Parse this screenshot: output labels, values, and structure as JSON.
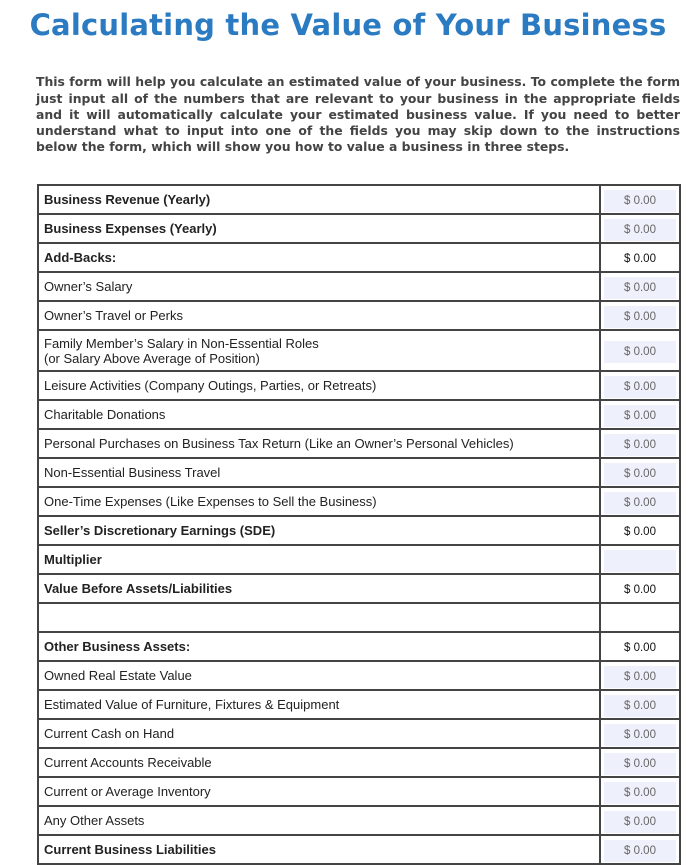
{
  "title": "Calculating the Value of Your Business",
  "intro": "This form will help you calculate an estimated value of your business. To complete the form just input all of the numbers that are relevant to your business in the appropriate fields and it will automatically calculate your estimated business value. If you need to better understand what to input into one of the fields you may skip down to the instructions below the form, which will show you how to value a business in three steps.",
  "rows": [
    {
      "label": "Business Revenue (Yearly)",
      "value": "$ 0.00",
      "bold": true,
      "type": "input"
    },
    {
      "label": "Business Expenses (Yearly)",
      "value": "$ 0.00",
      "bold": true,
      "type": "input"
    },
    {
      "label": "Add-Backs:",
      "value": "$ 0.00",
      "bold": true,
      "type": "calc"
    },
    {
      "label": "Owner’s Salary",
      "value": "$ 0.00",
      "type": "input"
    },
    {
      "label": "Owner’s Travel or Perks",
      "value": "$ 0.00",
      "type": "input"
    },
    {
      "label": "Family Member’s Salary in Non-Essential Roles\n(or Salary Above Average of Position)",
      "value": "$ 0.00",
      "type": "input",
      "two": true
    },
    {
      "label": "Leisure Activities (Company Outings, Parties, or Retreats)",
      "value": "$ 0.00",
      "type": "input"
    },
    {
      "label": "Charitable Donations",
      "value": "$ 0.00",
      "type": "input"
    },
    {
      "label": "Personal Purchases on Business Tax Return (Like an Owner’s Personal Vehicles)",
      "value": "$ 0.00",
      "type": "input"
    },
    {
      "label": "Non-Essential Business Travel",
      "value": "$ 0.00",
      "type": "input"
    },
    {
      "label": "One-Time Expenses (Like Expenses to Sell the Business)",
      "value": "$ 0.00",
      "type": "input"
    },
    {
      "label": "Seller’s Discretionary Earnings (SDE)",
      "value": "$ 0.00",
      "bold": true,
      "type": "calc"
    },
    {
      "label": "Multiplier",
      "value": "",
      "bold": true,
      "type": "input"
    },
    {
      "label": "Value Before Assets/Liabilities",
      "value": "$ 0.00",
      "bold": true,
      "type": "calc"
    },
    {
      "label": "",
      "value": "",
      "type": "blank"
    },
    {
      "label": "Other Business Assets:",
      "value": "$ 0.00",
      "bold": true,
      "type": "calc"
    },
    {
      "label": "Owned Real Estate Value",
      "value": "$ 0.00",
      "type": "input"
    },
    {
      "label": "Estimated Value of Furniture, Fixtures & Equipment",
      "value": "$ 0.00",
      "type": "input"
    },
    {
      "label": "Current Cash on Hand",
      "value": "$ 0.00",
      "type": "input"
    },
    {
      "label": "Current Accounts Receivable",
      "value": "$ 0.00",
      "type": "input"
    },
    {
      "label": "Current or Average Inventory",
      "value": "$ 0.00",
      "type": "input"
    },
    {
      "label": "Any Other Assets",
      "value": "$ 0.00",
      "type": "input"
    },
    {
      "label": "Current Business Liabilities",
      "value": "$ 0.00",
      "bold": true,
      "type": "input"
    }
  ]
}
